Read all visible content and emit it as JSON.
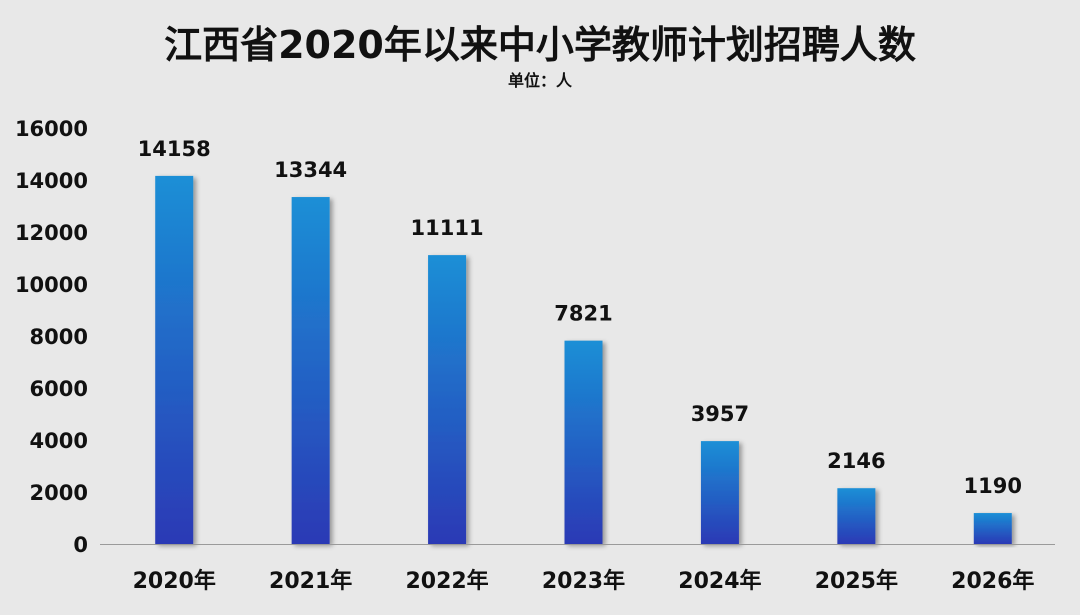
{
  "chart_data": {
    "type": "bar",
    "title": "江西省2020年以来中小学教师计划招聘人数",
    "subtitle": "单位：人",
    "xlabel": "",
    "ylabel": "",
    "categories": [
      "2020年",
      "2021年",
      "2022年",
      "2023年",
      "2024年",
      "2025年",
      "2026年"
    ],
    "values": [
      14158,
      13344,
      11111,
      7821,
      3957,
      2146,
      1190
    ],
    "data_labels": [
      "14158",
      "13344",
      "11111",
      "7821",
      "3957",
      "2146",
      "1190"
    ],
    "ylim": [
      0,
      16000
    ],
    "yticks": [
      "0",
      "2000",
      "4000",
      "6000",
      "8000",
      "10000",
      "12000",
      "14000",
      "16000"
    ],
    "ytick_values": [
      0,
      2000,
      4000,
      6000,
      8000,
      10000,
      12000,
      14000,
      16000
    ],
    "grid": false,
    "legend": "none",
    "colors": {
      "background": "#e8e8e8",
      "bar_top": "#1a8fd6",
      "bar_bottom": "#2b39b5",
      "text": "#111111",
      "axis": "#9a9a9a"
    }
  }
}
